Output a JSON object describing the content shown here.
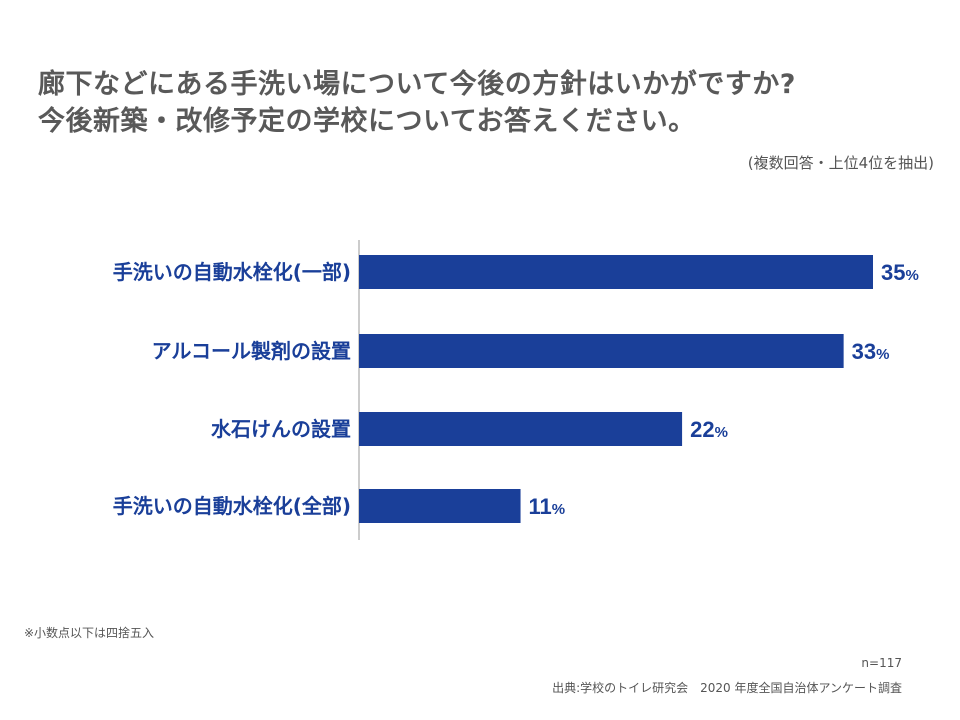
{
  "chart_data": {
    "type": "bar",
    "orientation": "horizontal",
    "title_lines": [
      "廊下などにある手洗い場について今後の方針はいかがですか?",
      "今後新築・改修予定の学校についてお答えください。"
    ],
    "subtitle": "(複数回答・上位4位を抽出)",
    "categories": [
      "手洗いの自動水栓化(一部)",
      "アルコール製剤の設置",
      "水石けんの設置",
      "手洗いの自動水栓化(全部)"
    ],
    "values": [
      35,
      33,
      22,
      11
    ],
    "unit": "%",
    "xlim": [
      0,
      35
    ],
    "grid": false,
    "legend": "none",
    "bar_color": "#1a3f99",
    "label_color": "#1a3f99"
  },
  "notes": {
    "footnote": "※小数点以下は四捨五入",
    "n": "n=117",
    "source": "出典:学校のトイレ研究会　2020 年度全国自治体アンケート調査"
  }
}
